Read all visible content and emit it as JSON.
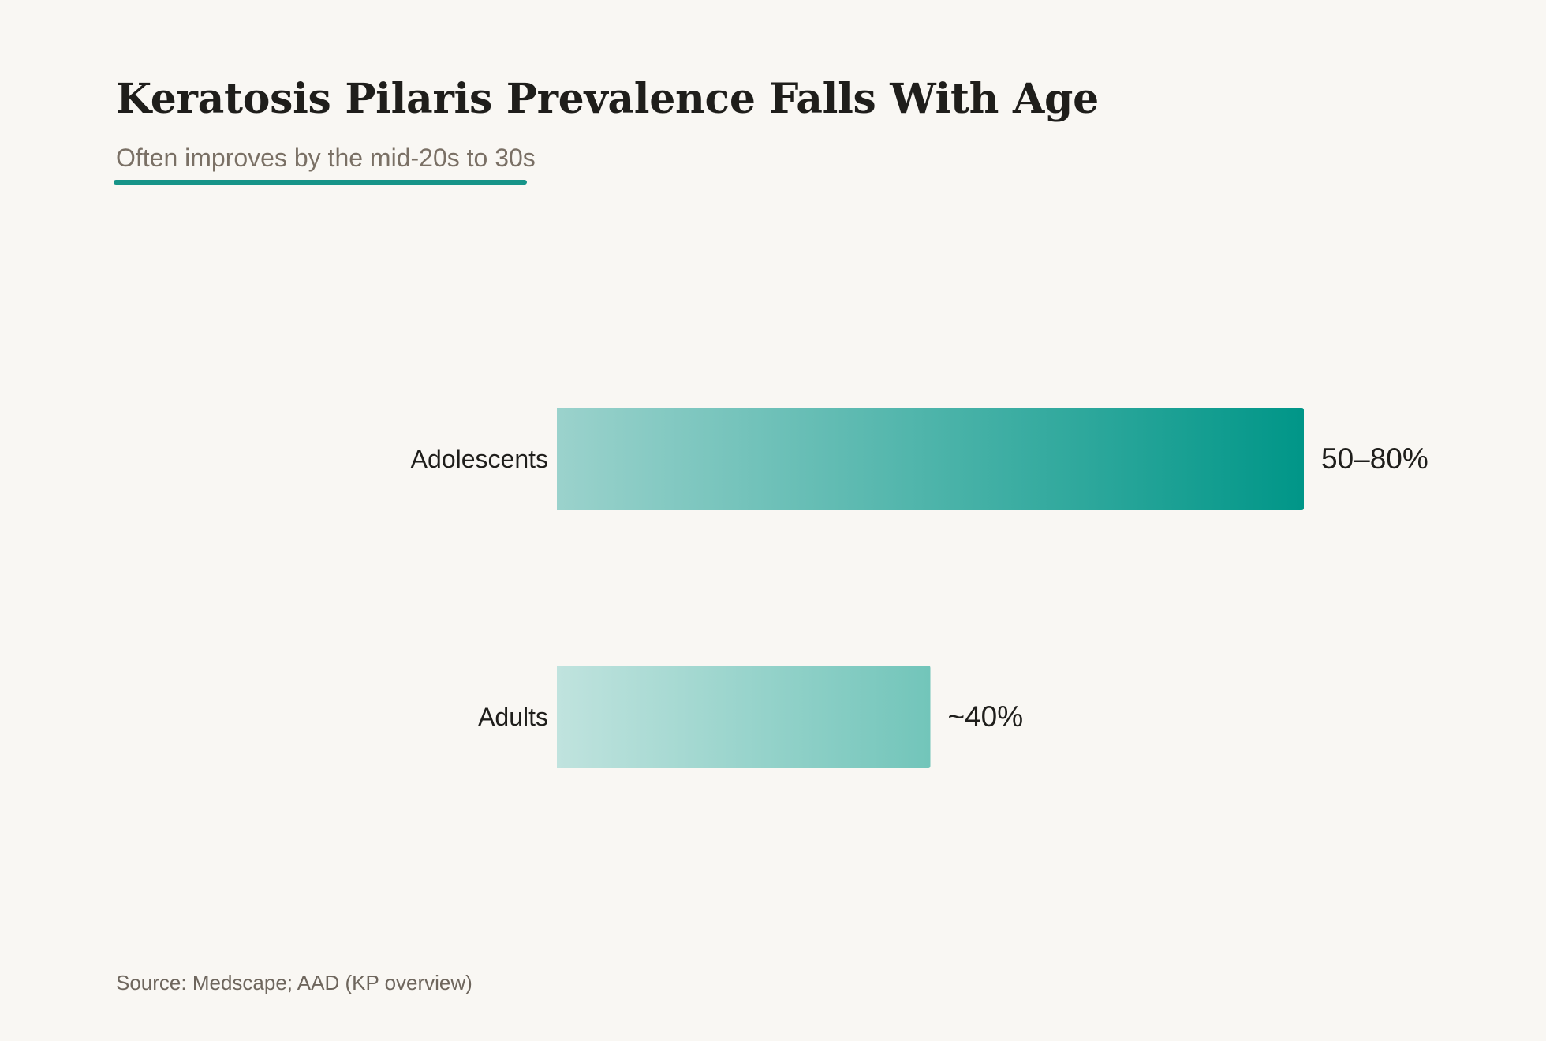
{
  "header": {
    "title": "Keratosis Pilaris Prevalence Falls With Age",
    "subtitle": "Often improves by the mid-20s to 30s"
  },
  "footer": {
    "source": "Source: Medscape; AAD (KP overview)"
  },
  "colors": {
    "background": "#f9f7f3",
    "accent": "#179488",
    "bar_dark": "#009688",
    "bar_mid": "#72c5ba",
    "bar_light": "#c0e3de",
    "text_primary": "#1f1e1b",
    "text_muted": "#7a7065"
  },
  "chart_data": {
    "type": "bar",
    "orientation": "horizontal",
    "categories": [
      "Adolescents",
      "Adults"
    ],
    "values": [
      80,
      40
    ],
    "ranges": [
      [
        50,
        80
      ],
      [
        40,
        40
      ]
    ],
    "data_labels": [
      "50–80%",
      "~40%"
    ],
    "title": "Keratosis Pilaris Prevalence Falls With Age",
    "subtitle": "Often improves by the mid-20s to 30s",
    "xlim": [
      0,
      80
    ],
    "grid": false,
    "legend": "none"
  }
}
